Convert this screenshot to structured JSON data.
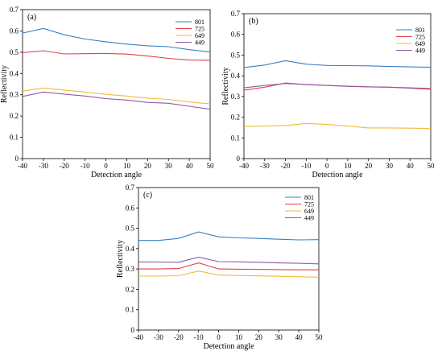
{
  "chart_data": [
    {
      "type": "line",
      "panel_label": "(a)",
      "xlabel": "Detection angle",
      "ylabel": "Reflectivity",
      "xlim": [
        -40,
        50
      ],
      "ylim": [
        0,
        0.7
      ],
      "x_ticks": [
        -40,
        -30,
        -20,
        -10,
        0,
        10,
        20,
        30,
        40,
        50
      ],
      "y_ticks": [
        0,
        0.1,
        0.2,
        0.3,
        0.4,
        0.5,
        0.6,
        0.7
      ],
      "legend_placement": "top-right",
      "grid": false,
      "x": [
        -40,
        -30,
        -20,
        -10,
        0,
        10,
        20,
        30,
        40,
        50
      ],
      "series": [
        {
          "name": "801",
          "color": "#3a7fc1",
          "values": [
            0.59,
            0.612,
            0.582,
            0.562,
            0.549,
            0.538,
            0.53,
            0.526,
            0.512,
            0.501
          ]
        },
        {
          "name": "725",
          "color": "#e2404a",
          "values": [
            0.498,
            0.507,
            0.492,
            0.493,
            0.494,
            0.491,
            0.482,
            0.471,
            0.463,
            0.462
          ]
        },
        {
          "name": "649",
          "color": "#f2b93b",
          "values": [
            0.317,
            0.332,
            0.322,
            0.313,
            0.302,
            0.294,
            0.284,
            0.278,
            0.266,
            0.257
          ]
        },
        {
          "name": "449",
          "color": "#8e5aa8",
          "values": [
            0.292,
            0.313,
            0.303,
            0.294,
            0.282,
            0.275,
            0.264,
            0.26,
            0.246,
            0.232
          ]
        }
      ]
    },
    {
      "type": "line",
      "panel_label": "(b)",
      "xlabel": "Detection angle",
      "ylabel": "Reflectivity",
      "xlim": [
        -40,
        50
      ],
      "ylim": [
        0,
        0.7
      ],
      "x_ticks": [
        -40,
        -30,
        -20,
        -10,
        0,
        10,
        20,
        30,
        40,
        50
      ],
      "y_ticks": [
        0,
        0.1,
        0.2,
        0.3,
        0.4,
        0.5,
        0.6,
        0.7
      ],
      "legend_placement": "top-right",
      "grid": false,
      "x": [
        -40,
        -30,
        -20,
        -10,
        0,
        10,
        20,
        30,
        40,
        50
      ],
      "series": [
        {
          "name": "801",
          "color": "#3a7fc1",
          "values": [
            0.44,
            0.452,
            0.473,
            0.456,
            0.45,
            0.449,
            0.448,
            0.445,
            0.443,
            0.441
          ]
        },
        {
          "name": "725",
          "color": "#e2404a",
          "values": [
            0.33,
            0.345,
            0.365,
            0.357,
            0.354,
            0.35,
            0.347,
            0.345,
            0.342,
            0.338
          ]
        },
        {
          "name": "649",
          "color": "#f2b93b",
          "values": [
            0.155,
            0.157,
            0.16,
            0.17,
            0.165,
            0.157,
            0.148,
            0.148,
            0.147,
            0.145
          ]
        },
        {
          "name": "449",
          "color": "#8e5aa8",
          "values": [
            0.342,
            0.353,
            0.363,
            0.358,
            0.353,
            0.349,
            0.346,
            0.345,
            0.34,
            0.335
          ]
        }
      ]
    },
    {
      "type": "line",
      "panel_label": "(c)",
      "xlabel": "Detection angle",
      "ylabel": "Reflectivity",
      "xlim": [
        -40,
        50
      ],
      "ylim": [
        0,
        0.7
      ],
      "x_ticks": [
        -40,
        -30,
        -20,
        -10,
        0,
        10,
        20,
        30,
        40,
        50
      ],
      "y_ticks": [
        0,
        0.1,
        0.2,
        0.3,
        0.4,
        0.5,
        0.6,
        0.7
      ],
      "legend_placement": "top-right",
      "grid": false,
      "x": [
        -40,
        -30,
        -20,
        -10,
        0,
        10,
        20,
        30,
        40,
        50
      ],
      "series": [
        {
          "name": "801",
          "color": "#3a7fc1",
          "values": [
            0.44,
            0.44,
            0.45,
            0.482,
            0.458,
            0.453,
            0.45,
            0.446,
            0.443,
            0.444
          ]
        },
        {
          "name": "725",
          "color": "#e2404a",
          "values": [
            0.3,
            0.3,
            0.302,
            0.33,
            0.3,
            0.299,
            0.298,
            0.297,
            0.296,
            0.296
          ]
        },
        {
          "name": "649",
          "color": "#f2b93b",
          "values": [
            0.265,
            0.265,
            0.267,
            0.29,
            0.27,
            0.268,
            0.266,
            0.264,
            0.262,
            0.26
          ]
        },
        {
          "name": "449",
          "color": "#8e5aa8",
          "values": [
            0.335,
            0.334,
            0.333,
            0.358,
            0.336,
            0.335,
            0.333,
            0.33,
            0.328,
            0.325
          ]
        }
      ]
    }
  ]
}
